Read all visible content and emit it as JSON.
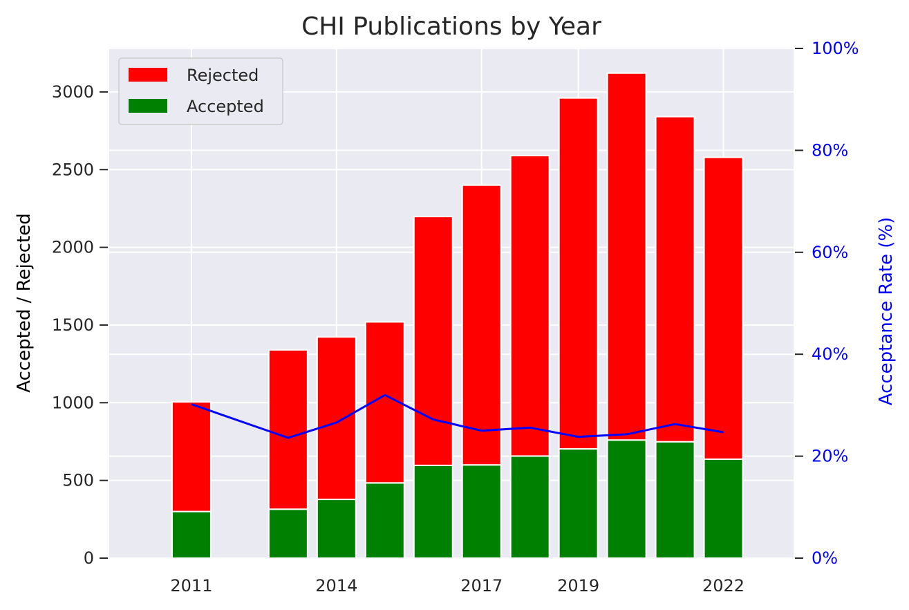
{
  "chart_data": {
    "type": "bar",
    "title": "CHI Publications by Year",
    "ylabel": "Accepted / Rejected",
    "ylabel_right": "Acceptance Rate (%)",
    "categories": [
      2011,
      2013,
      2014,
      2015,
      2016,
      2017,
      2018,
      2019,
      2020,
      2021,
      2022
    ],
    "series": [
      {
        "name": "Accepted",
        "type": "bar",
        "color": "#008000",
        "values": [
          300,
          315,
          378,
          484,
          597,
          600,
          657,
          703,
          760,
          749,
          637
        ]
      },
      {
        "name": "Rejected",
        "type": "bar",
        "color": "#ff0000",
        "values": [
          705,
          1025,
          1045,
          1036,
          1601,
          1800,
          1933,
          2258,
          2361,
          2092,
          1942
        ]
      },
      {
        "type": "line",
        "axis": "right",
        "color": "#0000ff",
        "values": [
          30.2,
          23.6,
          26.6,
          32.0,
          27.2,
          25.0,
          25.6,
          23.8,
          24.3,
          26.3,
          24.7
        ]
      }
    ],
    "xticks": [
      2011,
      2014,
      2017,
      2019,
      2022
    ],
    "ylim": [
      0,
      3280
    ],
    "yticks": [
      0,
      500,
      1000,
      1500,
      2000,
      2500,
      3000
    ],
    "ylim_right": [
      0,
      100
    ],
    "yticks_right": [
      "0%",
      "20%",
      "40%",
      "60%",
      "80%",
      "100%"
    ],
    "xlim": [
      2009.3,
      2023.45
    ],
    "grid": true,
    "legend": "top-left",
    "background": "#eaeaf2",
    "right_axis_color": "#0000ff"
  }
}
